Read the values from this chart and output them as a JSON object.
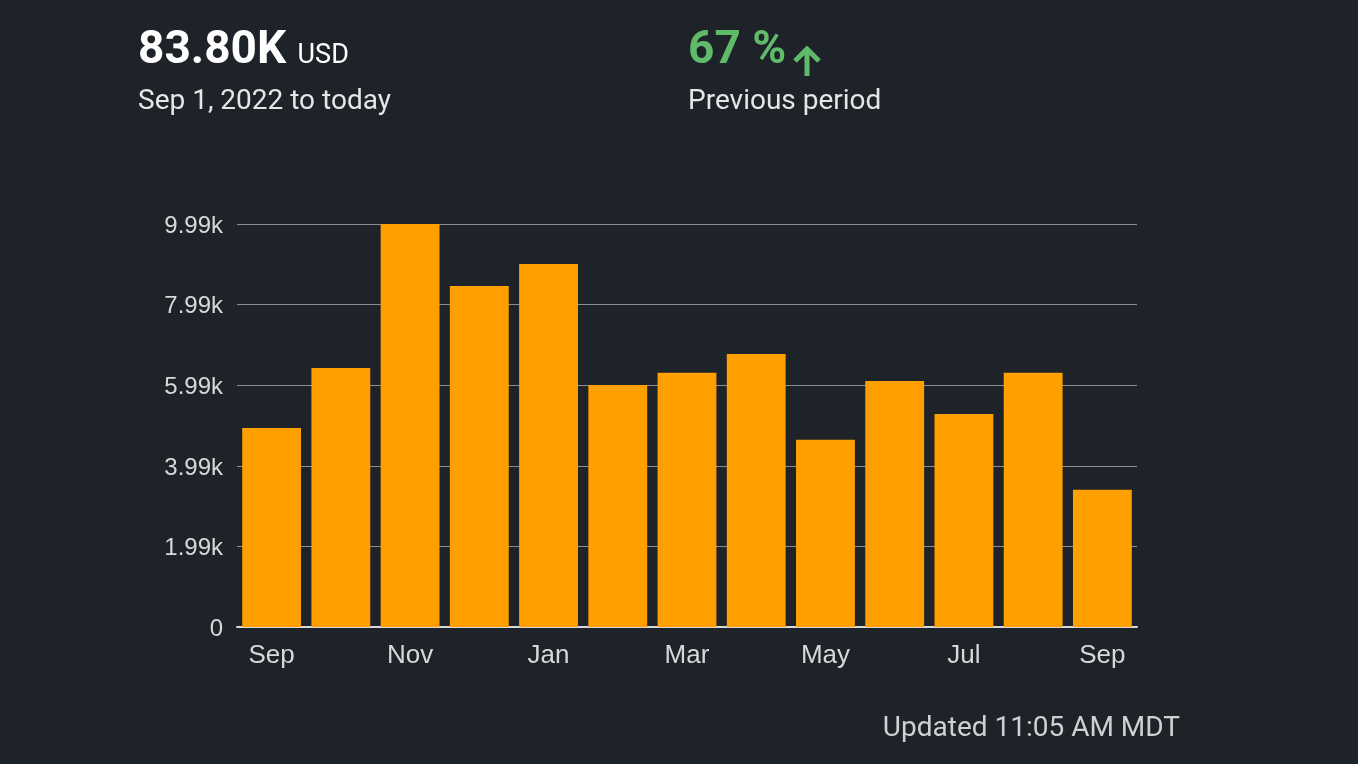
{
  "chart_data": {
    "type": "bar",
    "title": "83.80K USD",
    "subtitle": "Sep 1, 2022 to today",
    "annotations": [
      "67 %",
      "Previous period",
      "Updated 11:05 AM MDT"
    ],
    "categories": [
      "Sep",
      null,
      "Nov",
      null,
      "Jan",
      null,
      "Mar",
      null,
      "May",
      null,
      "Jul",
      null,
      "Sep"
    ],
    "values": [
      4.93,
      6.42,
      9.99,
      8.45,
      9.0,
      6.0,
      6.3,
      6.77,
      4.64,
      6.1,
      5.28,
      6.3,
      3.4
    ],
    "color": "#ff9f00",
    "ylim": [
      0,
      9.99
    ],
    "yticks": [
      0,
      {
        "value": 1.99,
        "label": "1.99k"
      },
      {
        "value": 3.99,
        "label": "3.99k"
      },
      {
        "value": 5.99,
        "label": "5.99k"
      },
      {
        "value": 7.99,
        "label": "7.99k"
      },
      {
        "value": 9.99,
        "label": "9.99k"
      }
    ],
    "grid": "y"
  }
}
